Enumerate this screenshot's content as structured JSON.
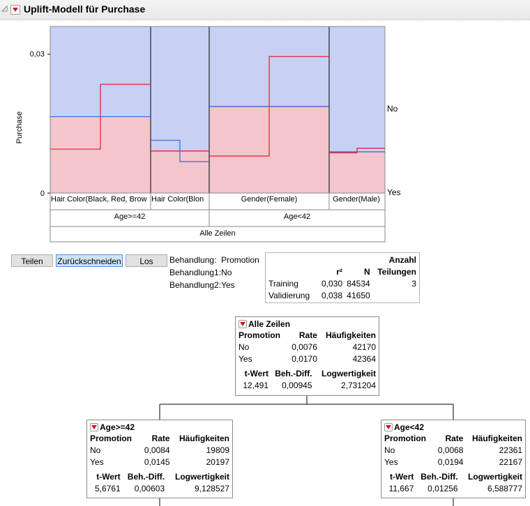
{
  "header": {
    "title": "Uplift-Modell für Purchase"
  },
  "chart": {
    "ylabel": "Purchase",
    "yticks": [
      "0,03",
      "0"
    ],
    "right_labels": [
      "No",
      "Yes"
    ],
    "leaf_labels": [
      "Hair Color(Black, Red, Brow",
      "Hair Color(Blon",
      "Gender(Female)",
      "Gender(Male)"
    ],
    "level2_labels": [
      "Age>=42",
      "Age<42"
    ],
    "level3_label": "Alle Zeilen"
  },
  "chart_data": {
    "type": "bar",
    "ylabel": "Purchase",
    "ylim": [
      0,
      0.036
    ],
    "categories": [
      "Hair Color(Black, Red, Brow",
      "Hair Color(Blon",
      "Gender(Female)",
      "Gender(Male)"
    ],
    "stack_colors": {
      "Yes": "#f2c6cc",
      "No": "#c6d1f3"
    },
    "yes_rate": [
      0.0165,
      0.0091,
      0.0187,
      0.0089
    ],
    "treatment_lines": [
      {
        "color": "#e8192c",
        "no": [
          0.0095,
          0.0091,
          0.008,
          0.0087
        ],
        "yes": [
          0.0235,
          0.0091,
          0.0295,
          0.0097
        ]
      },
      {
        "color": "#3c63d8",
        "no": [
          0.0165,
          0.0114,
          0.0187,
          0.0089
        ],
        "yes": [
          0.0165,
          0.0068,
          0.0187,
          0.0089
        ]
      }
    ]
  },
  "controls": {
    "split": "Teilen",
    "prune": "Zurückschneiden",
    "go": "Los"
  },
  "treatment": {
    "label": "Behandlung:",
    "value": "Promotion",
    "l1_label": "Behandlung1:",
    "l1_value": "No",
    "l2_label": "Behandlung2:",
    "l2_value": "Yes"
  },
  "stats": {
    "anzahl": "Anzahl",
    "r2": "r²",
    "n": "N",
    "teilungen": "Teilungen",
    "rows": [
      {
        "label": "Training",
        "r2": "0,030",
        "n": "84534",
        "splits": "3"
      },
      {
        "label": "Validierung",
        "r2": "0,038",
        "n": "41650",
        "splits": ""
      }
    ]
  },
  "nodes": [
    {
      "title": "Alle Zeilen",
      "headers": [
        "Promotion",
        "Rate",
        "Häufigkeiten"
      ],
      "rows": [
        [
          "No",
          "0,0076",
          "42170"
        ],
        [
          "Yes",
          "0,0170",
          "42364"
        ]
      ],
      "stat_headers": [
        "t-Wert",
        "Beh.-Diff.",
        "Logwertigkeit"
      ],
      "stat_values": [
        "12,491",
        "0,00945",
        "2,731204"
      ]
    },
    {
      "title": "Age>=42",
      "headers": [
        "Promotion",
        "Rate",
        "Häufigkeiten"
      ],
      "rows": [
        [
          "No",
          "0,0084",
          "19809"
        ],
        [
          "Yes",
          "0,0145",
          "20197"
        ]
      ],
      "stat_headers": [
        "t-Wert",
        "Beh.-Diff.",
        "Logwertigkeit"
      ],
      "stat_values": [
        "5,6761",
        "0,00603",
        "9,128527"
      ]
    },
    {
      "title": "Age<42",
      "headers": [
        "Promotion",
        "Rate",
        "Häufigkeiten"
      ],
      "rows": [
        [
          "No",
          "0,0068",
          "22361"
        ],
        [
          "Yes",
          "0,0194",
          "22167"
        ]
      ],
      "stat_headers": [
        "t-Wert",
        "Beh.-Diff.",
        "Logwertigkeit"
      ],
      "stat_values": [
        "11,667",
        "0,01256",
        "6,588777"
      ]
    }
  ]
}
